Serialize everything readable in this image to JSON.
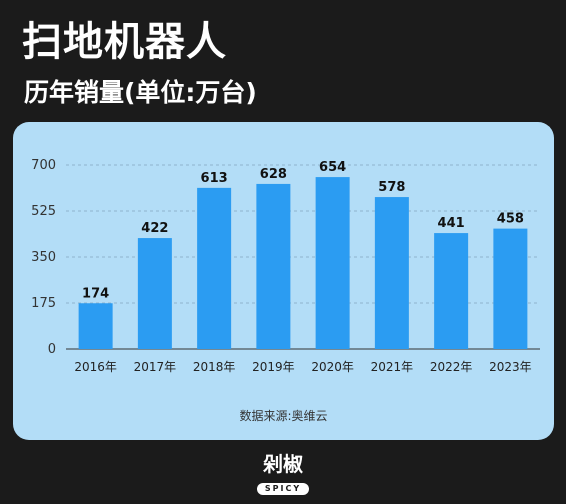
{
  "header": {
    "title": "扫地机器人",
    "subtitle": "历年销量(单位:万台)"
  },
  "source": "数据来源:奥维云",
  "logo": {
    "text": "剁椒",
    "badge": "SPICY"
  },
  "colors": {
    "background": "#1b1b1b",
    "card": "#b3ddf7",
    "bar": "#2b9cf2"
  },
  "chart_data": {
    "type": "bar",
    "categories": [
      "2016年",
      "2017年",
      "2018年",
      "2019年",
      "2020年",
      "2021年",
      "2022年",
      "2023年"
    ],
    "values": [
      174,
      422,
      613,
      628,
      654,
      578,
      441,
      458
    ],
    "ylim": [
      0,
      700
    ],
    "yticks": [
      0,
      175,
      350,
      525,
      700
    ],
    "grid": true
  }
}
